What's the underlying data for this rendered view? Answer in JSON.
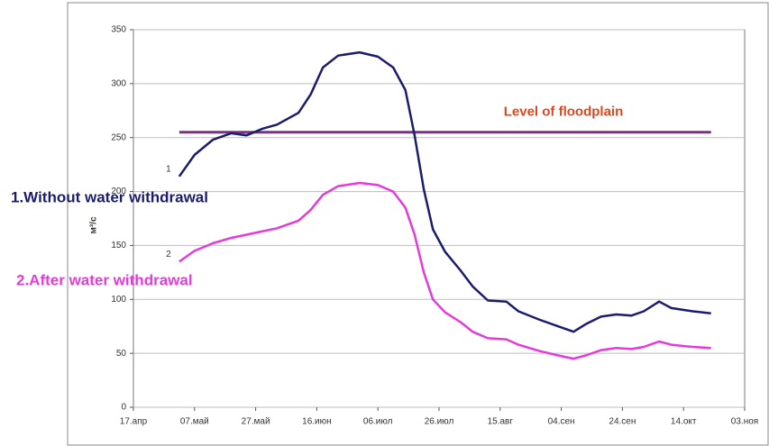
{
  "chart_data": {
    "type": "line",
    "y_label": "м³/с",
    "xlim": [
      0,
      200
    ],
    "xticks": [
      {
        "value": 0,
        "label": "17.апр"
      },
      {
        "value": 20,
        "label": "07.май"
      },
      {
        "value": 40,
        "label": "27.май"
      },
      {
        "value": 60,
        "label": "16.июн"
      },
      {
        "value": 80,
        "label": "06.июл"
      },
      {
        "value": 100,
        "label": "26.июл"
      },
      {
        "value": 120,
        "label": "15.авг"
      },
      {
        "value": 140,
        "label": "04.сен"
      },
      {
        "value": 160,
        "label": "24.сен"
      },
      {
        "value": 180,
        "label": "14.окт"
      },
      {
        "value": 200,
        "label": "03.ноя"
      }
    ],
    "ylim": [
      0,
      350
    ],
    "yticks": [
      0,
      50,
      100,
      150,
      200,
      250,
      300,
      350
    ],
    "grid": true,
    "x": [
      15,
      20,
      26,
      32,
      37,
      42,
      47,
      54,
      58,
      62,
      67,
      74,
      80,
      85,
      89,
      92,
      95,
      98,
      102,
      107,
      111,
      116,
      122,
      126,
      133,
      139,
      144,
      148,
      153,
      158,
      163,
      167,
      172,
      176,
      183,
      189
    ],
    "series": [
      {
        "name": "1.Without water withdrawal",
        "tag": "1",
        "color": "#1c1c6e",
        "values": [
          214,
          234,
          248,
          254,
          252,
          258,
          262,
          273,
          290,
          315,
          326,
          329,
          325,
          315,
          294,
          252,
          202,
          165,
          144,
          127,
          112,
          99,
          98,
          89,
          81,
          75,
          70,
          77,
          84,
          86,
          85,
          89,
          98,
          92,
          89,
          87
        ]
      },
      {
        "name": "2.After water withdrawal",
        "tag": "2",
        "color": "#e53ad9",
        "values": [
          135,
          145,
          152,
          157,
          160,
          163,
          166,
          173,
          183,
          197,
          205,
          208,
          206,
          200,
          185,
          160,
          125,
          100,
          88,
          79,
          70,
          64,
          63,
          58,
          52,
          48,
          45,
          48,
          53,
          55,
          54,
          56,
          61,
          58,
          56,
          55
        ]
      }
    ],
    "hline": {
      "value": 255,
      "x": [
        15,
        189
      ],
      "label": "Level of floodplain",
      "color": "#7e2f86",
      "label_color": "#e0461a"
    }
  }
}
